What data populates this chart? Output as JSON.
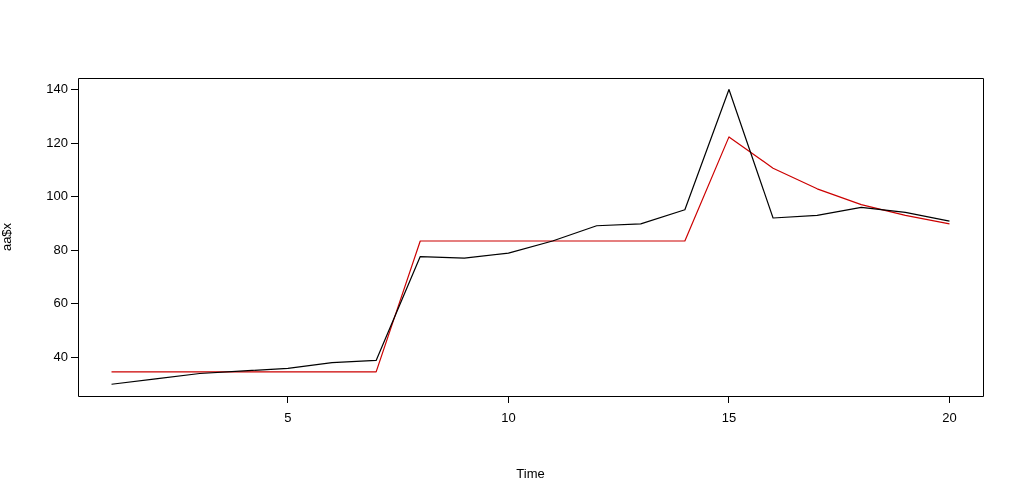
{
  "chart_data": {
    "type": "line",
    "xlabel": "Time",
    "ylabel": "aa$x",
    "x": [
      1,
      2,
      3,
      4,
      5,
      6,
      7,
      8,
      9,
      10,
      11,
      12,
      13,
      14,
      15,
      16,
      17,
      18,
      19,
      20
    ],
    "series": [
      {
        "color": "#000000",
        "values": [
          30,
          32,
          34,
          35,
          35.9,
          38.1,
          38.9,
          77.7,
          77.1,
          79,
          83.5,
          89.2,
          89.9,
          95.2,
          140.1,
          92.1,
          93.1,
          96.1,
          94.2,
          90.9
        ]
      },
      {
        "color": "#cc0000",
        "values": [
          34.6,
          34.6,
          34.6,
          34.6,
          34.6,
          34.6,
          34.6,
          83.5,
          83.5,
          83.5,
          83.5,
          83.5,
          83.5,
          83.5,
          122.4,
          110.7,
          103,
          97.1,
          93.1,
          89.9
        ]
      }
    ],
    "xlim": [
      0.24,
      20.76
    ],
    "ylim": [
      25.6,
      144.4
    ],
    "xticks": [
      5,
      10,
      15,
      20
    ],
    "yticks": [
      40,
      60,
      80,
      100,
      120,
      140
    ],
    "grid": false,
    "legend": false,
    "marker": "none",
    "line_style": "solid"
  }
}
